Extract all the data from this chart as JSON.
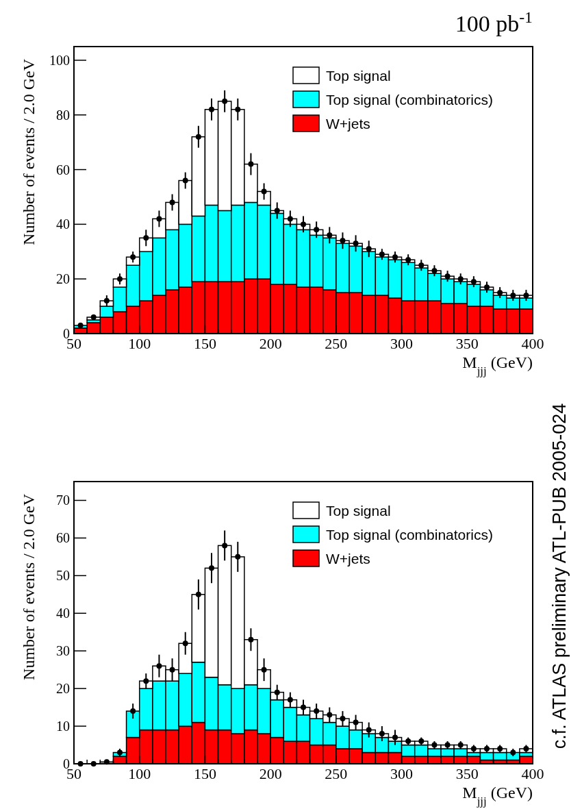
{
  "chart_data": [
    {
      "type": "bar",
      "xlabel": "M$_{jjj}$ (GeV)",
      "ylabel": "Number of events / 2.0 GeV",
      "annotations": [
        "100 pb$^{-1}$"
      ],
      "x": [
        55,
        65,
        75,
        85,
        95,
        105,
        115,
        125,
        135,
        145,
        155,
        165,
        175,
        185,
        195,
        205,
        215,
        225,
        235,
        245,
        255,
        265,
        275,
        285,
        295,
        305,
        315,
        325,
        335,
        345,
        355,
        365,
        375,
        385,
        395
      ],
      "xlim": [
        50,
        400
      ],
      "xticks": [
        50,
        {
          "value": 60,
          "label": null
        },
        {
          "value": 70,
          "label": null
        },
        {
          "value": 80,
          "label": null
        },
        {
          "value": 90,
          "label": null
        },
        100,
        {
          "value": 110,
          "label": null
        },
        {
          "value": 120,
          "label": null
        },
        {
          "value": 130,
          "label": null
        },
        {
          "value": 140,
          "label": null
        },
        150,
        {
          "value": 160,
          "label": null
        },
        {
          "value": 170,
          "label": null
        },
        {
          "value": 180,
          "label": null
        },
        {
          "value": 190,
          "label": null
        },
        200,
        {
          "value": 210,
          "label": null
        },
        {
          "value": 220,
          "label": null
        },
        {
          "value": 230,
          "label": null
        },
        {
          "value": 240,
          "label": null
        },
        250,
        {
          "value": 260,
          "label": null
        },
        {
          "value": 270,
          "label": null
        },
        {
          "value": 280,
          "label": null
        },
        {
          "value": 290,
          "label": null
        },
        300,
        {
          "value": 310,
          "label": null
        },
        {
          "value": 320,
          "label": null
        },
        {
          "value": 330,
          "label": null
        },
        {
          "value": 340,
          "label": null
        },
        350,
        {
          "value": 360,
          "label": null
        },
        {
          "value": 370,
          "label": null
        },
        {
          "value": 380,
          "label": null
        },
        {
          "value": 390,
          "label": null
        },
        400
      ],
      "ylim": [
        0,
        105
      ],
      "yticks": [
        0,
        20,
        40,
        60,
        80,
        100
      ],
      "stacked": true,
      "legend": "top right",
      "series": [
        {
          "name": "W+jets",
          "color": "#ff0000",
          "values": [
            2,
            4,
            6,
            8,
            10,
            12,
            14,
            16,
            17,
            19,
            19,
            19,
            19,
            20,
            20,
            18,
            18,
            17,
            17,
            16,
            15,
            15,
            14,
            14,
            13,
            12,
            12,
            12,
            11,
            11,
            10,
            10,
            9,
            9,
            9
          ]
        },
        {
          "name": "Top signal (combinatorics)",
          "color": "#00ffff",
          "values": [
            1,
            1,
            4,
            9,
            15,
            18,
            21,
            22,
            23,
            24,
            28,
            26,
            28,
            28,
            27,
            26,
            22,
            21,
            19,
            19,
            18,
            17,
            16,
            14,
            14,
            14,
            12,
            10,
            9,
            8,
            8,
            6,
            5,
            4,
            4
          ]
        },
        {
          "name": "Top signal",
          "color": "#ffffff",
          "values": [
            0,
            1,
            2,
            3,
            3,
            5,
            7,
            10,
            16,
            29,
            35,
            40,
            35,
            14,
            5,
            1,
            2,
            2,
            2,
            1,
            1,
            1,
            1,
            1,
            1,
            1,
            1,
            1,
            1,
            1,
            1,
            1,
            1,
            1,
            1
          ]
        },
        {
          "type": "scatter",
          "marker": "circle",
          "color": "#000000",
          "x": [
            55,
            65,
            75,
            85,
            95,
            105,
            115,
            125,
            135,
            145,
            155,
            165,
            175,
            185,
            195,
            205,
            215,
            225,
            235,
            245,
            255,
            265,
            275,
            285,
            295,
            305,
            315,
            325,
            335,
            345,
            355,
            365,
            375,
            385,
            395
          ],
          "values": [
            3,
            6,
            12,
            20,
            28,
            35,
            42,
            48,
            56,
            72,
            82,
            85,
            82,
            62,
            52,
            45,
            42,
            40,
            38,
            36,
            34,
            33,
            31,
            29,
            28,
            27,
            25,
            23,
            21,
            20,
            19,
            17,
            15,
            14,
            14
          ],
          "errors": [
            1,
            1,
            2,
            2,
            2,
            3,
            3,
            3,
            3,
            4,
            4,
            4,
            4,
            4,
            3,
            3,
            3,
            3,
            3,
            3,
            3,
            3,
            3,
            2,
            2,
            2,
            2,
            2,
            2,
            2,
            2,
            2,
            2,
            2,
            2
          ]
        }
      ]
    },
    {
      "type": "bar",
      "xlabel": "M$_{jjj}$ (GeV)",
      "ylabel": "Number of events / 2.0 GeV",
      "annotations": [
        "c.f. ATLAS preliminary ATL-PUB 2005-024"
      ],
      "x": [
        55,
        65,
        75,
        85,
        95,
        105,
        115,
        125,
        135,
        145,
        155,
        165,
        175,
        185,
        195,
        205,
        215,
        225,
        235,
        245,
        255,
        265,
        275,
        285,
        295,
        305,
        315,
        325,
        335,
        345,
        355,
        365,
        375,
        385,
        395
      ],
      "xlim": [
        50,
        400
      ],
      "xticks": [
        50,
        {
          "value": 60,
          "label": null
        },
        {
          "value": 70,
          "label": null
        },
        {
          "value": 80,
          "label": null
        },
        {
          "value": 90,
          "label": null
        },
        100,
        {
          "value": 110,
          "label": null
        },
        {
          "value": 120,
          "label": null
        },
        {
          "value": 130,
          "label": null
        },
        {
          "value": 140,
          "label": null
        },
        150,
        {
          "value": 160,
          "label": null
        },
        {
          "value": 170,
          "label": null
        },
        {
          "value": 180,
          "label": null
        },
        {
          "value": 190,
          "label": null
        },
        200,
        {
          "value": 210,
          "label": null
        },
        {
          "value": 220,
          "label": null
        },
        {
          "value": 230,
          "label": null
        },
        {
          "value": 240,
          "label": null
        },
        250,
        {
          "value": 260,
          "label": null
        },
        {
          "value": 270,
          "label": null
        },
        {
          "value": 280,
          "label": null
        },
        {
          "value": 290,
          "label": null
        },
        300,
        {
          "value": 310,
          "label": null
        },
        {
          "value": 320,
          "label": null
        },
        {
          "value": 330,
          "label": null
        },
        {
          "value": 340,
          "label": null
        },
        350,
        {
          "value": 360,
          "label": null
        },
        {
          "value": 370,
          "label": null
        },
        {
          "value": 380,
          "label": null
        },
        {
          "value": 390,
          "label": null
        },
        400
      ],
      "ylim": [
        0,
        75
      ],
      "yticks": [
        0,
        10,
        20,
        30,
        40,
        50,
        60,
        70
      ],
      "stacked": true,
      "legend": "top right",
      "series": [
        {
          "name": "W+jets",
          "color": "#ff0000",
          "values": [
            0,
            0,
            0,
            2,
            7,
            9,
            9,
            9,
            10,
            11,
            9,
            9,
            8,
            9,
            8,
            7,
            6,
            6,
            5,
            5,
            4,
            4,
            3,
            3,
            3,
            2,
            2,
            2,
            2,
            2,
            2,
            1,
            1,
            1,
            2
          ]
        },
        {
          "name": "Top signal (combinatorics)",
          "color": "#00ffff",
          "values": [
            0,
            0,
            0.5,
            1,
            7,
            11,
            13,
            13,
            14,
            16,
            14,
            12,
            12,
            12,
            12,
            10,
            9,
            7,
            7,
            6,
            6,
            5,
            5,
            4,
            3,
            3,
            3,
            2,
            2,
            2,
            1,
            2,
            2,
            2,
            1
          ]
        },
        {
          "name": "Top signal",
          "color": "#ffffff",
          "values": [
            0,
            0,
            0,
            0,
            0,
            2,
            4,
            3,
            8,
            18,
            29,
            37,
            35,
            12,
            5,
            2,
            2,
            2,
            2,
            2,
            2,
            2,
            1,
            1,
            1,
            1,
            1,
            1,
            1,
            1,
            1,
            1,
            1,
            0,
            1
          ]
        },
        {
          "type": "scatter",
          "marker": "circle",
          "color": "#000000",
          "x": [
            55,
            65,
            75,
            85,
            95,
            105,
            115,
            125,
            135,
            145,
            155,
            165,
            175,
            185,
            195,
            205,
            215,
            225,
            235,
            245,
            255,
            265,
            275,
            285,
            295,
            305,
            315,
            325,
            335,
            345,
            355,
            365,
            375,
            385,
            395
          ],
          "values": [
            0,
            0,
            0.5,
            3,
            14,
            22,
            26,
            25,
            32,
            45,
            52,
            58,
            55,
            33,
            25,
            19,
            17,
            15,
            14,
            13,
            12,
            11,
            9,
            8,
            7,
            6,
            6,
            5,
            5,
            5,
            4,
            4,
            4,
            3,
            4
          ],
          "errors": [
            0.5,
            0.5,
            0.5,
            1,
            2,
            2,
            3,
            3,
            3,
            4,
            4,
            4,
            4,
            3,
            3,
            2,
            2,
            2,
            2,
            2,
            2,
            2,
            2,
            2,
            2,
            1,
            1,
            1,
            1,
            1,
            1,
            1,
            1,
            1,
            1
          ]
        }
      ]
    }
  ]
}
